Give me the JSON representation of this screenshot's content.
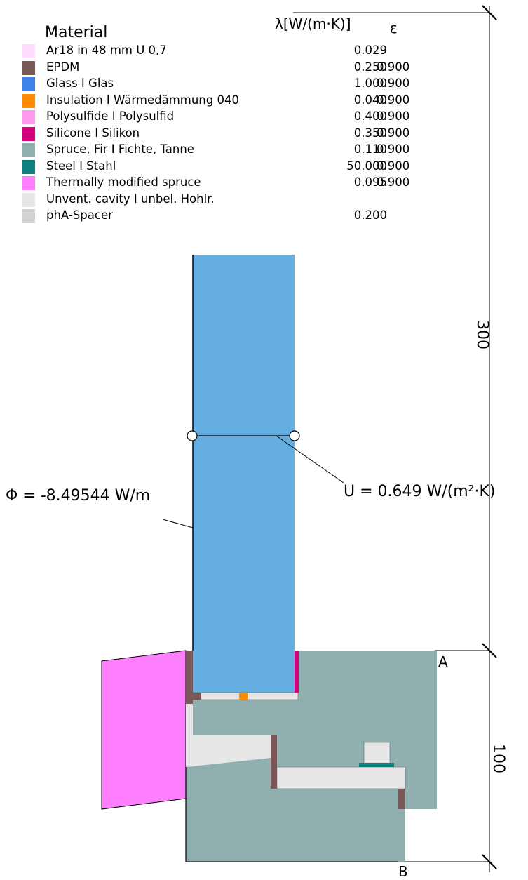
{
  "legend": {
    "title": "Material",
    "lambda_header": "λ[W/(m·K)]",
    "epsilon_header": "ε",
    "rows": [
      {
        "name": "Ar18 in 48 mm U 0,7",
        "lambda": "0.029",
        "epsilon": "",
        "color": "#FFDDFF"
      },
      {
        "name": "EPDM",
        "lambda": "0.250",
        "epsilon": "0.900",
        "color": "#7B5858"
      },
      {
        "name": "Glass  I  Glas",
        "lambda": "1.000",
        "epsilon": "0.900",
        "color": "#3E82E8"
      },
      {
        "name": "Insulation  I  Wärmedämmung 040",
        "lambda": "0.040",
        "epsilon": "0.900",
        "color": "#FF8C00"
      },
      {
        "name": "Polysulfide  I  Polysulfid",
        "lambda": "0.400",
        "epsilon": "0.900",
        "color": "#FF9AEE"
      },
      {
        "name": "Silicone  I  Silikon",
        "lambda": "0.350",
        "epsilon": "0.900",
        "color": "#D4007E"
      },
      {
        "name": "Spruce, Fir  I  Fichte, Tanne",
        "lambda": "0.110",
        "epsilon": "0.900",
        "color": "#90AFAF"
      },
      {
        "name": "Steel  I  Stahl",
        "lambda": "50.000",
        "epsilon": "0.900",
        "color": "#0F7F7F"
      },
      {
        "name": "Thermally modified spruce",
        "lambda": "0.095",
        "epsilon": "0.900",
        "color": "#FF80FF"
      },
      {
        "name": "Unvent. cavity  I  unbel. Hohlr.",
        "lambda": "",
        "epsilon": "",
        "color": "#E6E6E6"
      },
      {
        "name": "phA-Spacer",
        "lambda": "0.200",
        "epsilon": "",
        "color": "#D2D2D2"
      }
    ]
  },
  "annotations": {
    "phi": "Φ = -8.49544 W/m",
    "u_value": "U = 0.649 W/(m²·K)"
  },
  "dimensions": {
    "upper": "300",
    "lower": "100",
    "point_a": "A",
    "point_b": "B"
  },
  "colors": {
    "glass_fill": "#64AEE2",
    "spruce": "#90AFAF",
    "thermal_spruce": "#FF80FF",
    "epdm": "#7B5858",
    "silicone": "#D4007E",
    "insulation": "#FF8C00",
    "steel": "#0F7F7F",
    "cavity": "#E6E6E6"
  }
}
